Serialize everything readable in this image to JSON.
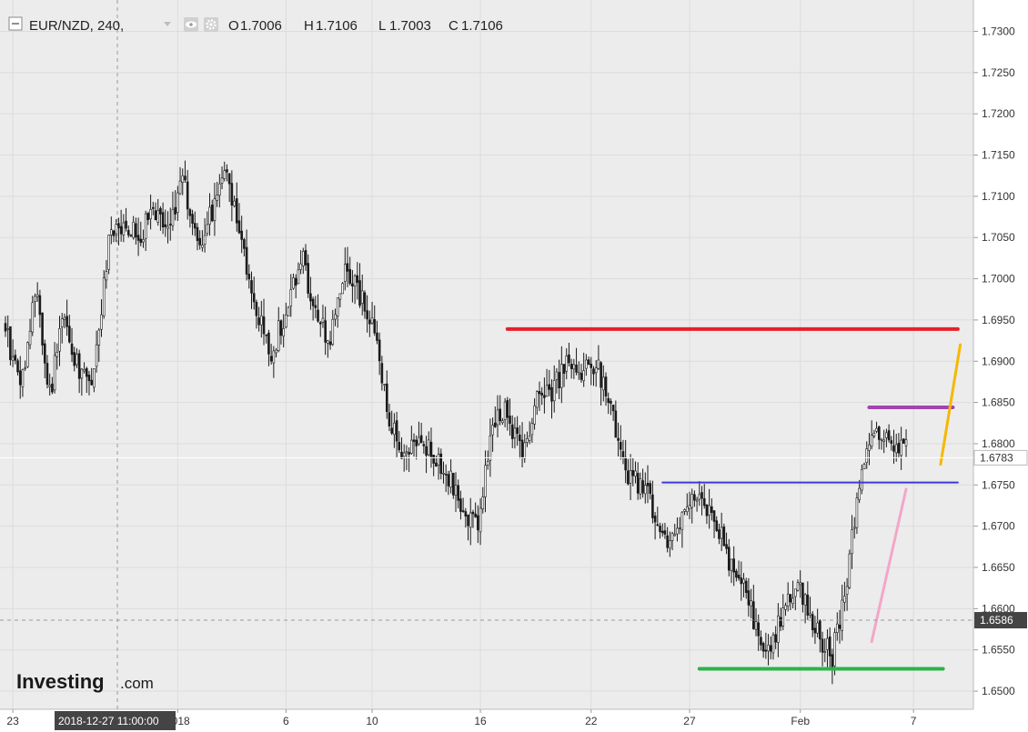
{
  "header": {
    "symbol": "EUR/NZD, 240,",
    "open_label": "O",
    "open_value": "1.7006",
    "high_label": "H",
    "high_value": "1.7106",
    "low_label": "L",
    "low_value": "1.7003",
    "close_label": "C",
    "close_value": "1.7106",
    "icons": [
      "collapse-icon",
      "eye-icon",
      "gear-icon"
    ]
  },
  "logo": {
    "brand": "Investing",
    "suffix": ".com"
  },
  "crosshair": {
    "time_label": "2018-12-27 11:00:00",
    "price_label": "1.6586",
    "price": 1.6586
  },
  "chart_data": {
    "type": "candlestick",
    "instrument": "EUR/NZD",
    "timeframe": "240",
    "ylim": [
      1.6478,
      1.7338
    ],
    "y_ticks": [
      "1.6500",
      "1.6550",
      "1.6600",
      "1.6650",
      "1.6700",
      "1.6750",
      "1.6800",
      "1.6850",
      "1.6900",
      "1.6950",
      "1.7000",
      "1.7050",
      "1.7100",
      "1.7150",
      "1.7200",
      "1.7250",
      "1.7300"
    ],
    "x_ticks": [
      "23",
      "2018",
      "6",
      "10",
      "16",
      "22",
      "27",
      "Feb",
      "7"
    ],
    "last_price": "1.6783",
    "last_price_value": 1.6783,
    "grid": true,
    "candles_count": 300,
    "anchors": [
      [
        0,
        1.6945
      ],
      [
        6,
        1.686
      ],
      [
        12,
        1.699
      ],
      [
        18,
        1.686
      ],
      [
        24,
        1.696
      ],
      [
        30,
        1.688
      ],
      [
        36,
        1.688
      ],
      [
        42,
        1.704
      ],
      [
        48,
        1.707
      ],
      [
        54,
        1.705
      ],
      [
        60,
        1.708
      ],
      [
        66,
        1.706
      ],
      [
        72,
        1.712
      ],
      [
        78,
        1.704
      ],
      [
        84,
        1.708
      ],
      [
        90,
        1.713
      ],
      [
        96,
        1.704
      ],
      [
        102,
        1.696
      ],
      [
        108,
        1.691
      ],
      [
        114,
        1.696
      ],
      [
        120,
        1.703
      ],
      [
        126,
        1.696
      ],
      [
        132,
        1.692
      ],
      [
        138,
        1.702
      ],
      [
        144,
        1.698
      ],
      [
        150,
        1.694
      ],
      [
        156,
        1.683
      ],
      [
        162,
        1.678
      ],
      [
        168,
        1.68
      ],
      [
        174,
        1.679
      ],
      [
        180,
        1.676
      ],
      [
        186,
        1.672
      ],
      [
        192,
        1.67
      ],
      [
        198,
        1.682
      ],
      [
        204,
        1.684
      ],
      [
        210,
        1.678
      ],
      [
        216,
        1.685
      ],
      [
        222,
        1.686
      ],
      [
        228,
        1.69
      ],
      [
        234,
        1.689
      ],
      [
        240,
        1.69
      ],
      [
        246,
        1.684
      ],
      [
        252,
        1.676
      ],
      [
        258,
        1.675
      ],
      [
        264,
        1.672
      ],
      [
        270,
        1.667
      ],
      [
        276,
        1.673
      ],
      [
        282,
        1.674
      ],
      [
        288,
        1.671
      ],
      [
        294,
        1.666
      ],
      [
        300,
        1.664
      ],
      [
        306,
        1.656
      ],
      [
        312,
        1.656
      ],
      [
        318,
        1.661
      ],
      [
        324,
        1.662
      ],
      [
        330,
        1.657
      ],
      [
        336,
        1.654
      ],
      [
        342,
        1.664
      ],
      [
        348,
        1.678
      ],
      [
        354,
        1.681
      ],
      [
        360,
        1.68
      ],
      [
        366,
        1.679
      ]
    ],
    "annotations": [
      {
        "name": "red-horizontal-line",
        "color": "#e8202a",
        "type": "horizontal",
        "price": 1.6939,
        "from_index": 204,
        "to_index": 387
      },
      {
        "name": "blue-horizontal-line",
        "color": "#3b3bd6",
        "type": "horizontal",
        "price": 1.6753,
        "from_index": 267,
        "to_index": 387
      },
      {
        "name": "green-horizontal-line",
        "color": "#2db34a",
        "type": "horizontal",
        "price": 1.6527,
        "from_index": 282,
        "to_index": 381
      },
      {
        "name": "purple-horizontal-line",
        "color": "#a044b0",
        "type": "horizontal",
        "price": 1.6844,
        "from_index": 351,
        "to_index": 385
      },
      {
        "name": "pink-trend-line",
        "color": "#f4a6c8",
        "type": "trend",
        "from": [
          352,
          1.656
        ],
        "to": [
          366,
          1.6745
        ]
      },
      {
        "name": "orange-trend-line",
        "color": "#f5b800",
        "type": "trend",
        "from": [
          380,
          1.6775
        ],
        "to": [
          388,
          1.692
        ]
      }
    ]
  },
  "colors": {
    "background": "#ececec",
    "axis_panel": "#ffffff",
    "grid": "#dcdcdc",
    "candle": "#1a1a1a",
    "crosshair": "#9a9a9a",
    "label_bg": "#444444",
    "label_text": "#ffffff"
  }
}
